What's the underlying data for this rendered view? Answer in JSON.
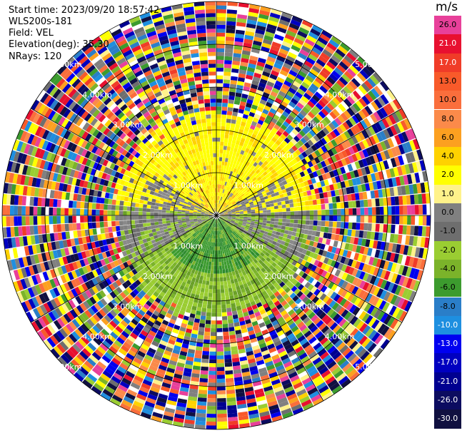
{
  "header": {
    "start_time": "Start time: 2023/09/20 18:57:42",
    "instrument": "WLS200s-181",
    "field": "Field: VEL",
    "elevation": "Elevation(deg): 35.30",
    "nrays": "NRays: 120"
  },
  "colorbar": {
    "unit": "m/s",
    "levels": [
      {
        "label": "26.0",
        "color": "#e8409a"
      },
      {
        "label": "21.0",
        "color": "#e81030"
      },
      {
        "label": "17.0",
        "color": "#f03c28"
      },
      {
        "label": "13.0",
        "color": "#f85a2a"
      },
      {
        "label": "10.0",
        "color": "#fa6e3c"
      },
      {
        "label": "8.0",
        "color": "#fb8a4a"
      },
      {
        "label": "6.0",
        "color": "#fca020"
      },
      {
        "label": "4.0",
        "color": "#ffd200"
      },
      {
        "label": "2.0",
        "color": "#ffff00"
      },
      {
        "label": "1.0",
        "color": "#fff28a"
      },
      {
        "label": "0.0",
        "color": "#808080"
      },
      {
        "label": "-1.0",
        "color": "#6e6e6e"
      },
      {
        "label": "-2.0",
        "color": "#9acd32"
      },
      {
        "label": "-4.0",
        "color": "#7bb32a"
      },
      {
        "label": "-6.0",
        "color": "#3c9b2e"
      },
      {
        "label": "-8.0",
        "color": "#2a7ec8"
      },
      {
        "label": "-10.0",
        "color": "#1e8fe0"
      },
      {
        "label": "-13.0",
        "color": "#0000f0"
      },
      {
        "label": "-17.0",
        "color": "#0000c0"
      },
      {
        "label": "-21.0",
        "color": "#000090"
      },
      {
        "label": "-26.0",
        "color": "#0c0c60"
      },
      {
        "label": "-30.0",
        "color": "#101040"
      }
    ]
  },
  "chart_data": {
    "type": "heatmap",
    "projection": "polar (PPI)",
    "field": "VEL",
    "units": "m/s",
    "range_rings_km": [
      1.0,
      2.0,
      3.0,
      4.0,
      5.0
    ],
    "ring_labels": [
      "1.00km",
      "2.00km",
      "3.00km",
      "4.00km",
      "5.00km"
    ],
    "spokes_deg": [
      0,
      30,
      60,
      90,
      120,
      150,
      180,
      210,
      240,
      270,
      300,
      330
    ],
    "max_range_km": 5.0,
    "nrays": 120,
    "color_levels": [
      26.0,
      21.0,
      17.0,
      13.0,
      10.0,
      8.0,
      6.0,
      4.0,
      2.0,
      1.0,
      0.0,
      -1.0,
      -2.0,
      -4.0,
      -6.0,
      -8.0,
      -10.0,
      -13.0,
      -17.0,
      -21.0,
      -26.0,
      -30.0
    ],
    "regions": [
      {
        "range_km": [
          0.0,
          2.2
        ],
        "sector": "north half",
        "dominant_value": 2.0
      },
      {
        "range_km": [
          0.0,
          2.2
        ],
        "sector": "south half",
        "dominant_value": -3.0
      },
      {
        "range_km": [
          0.3,
          2.0
        ],
        "sector": "east/west bands",
        "dominant_value": 0.0
      },
      {
        "range_km": [
          2.2,
          5.0
        ],
        "sector": "all",
        "dominant_value": "noise (all levels)"
      }
    ]
  }
}
